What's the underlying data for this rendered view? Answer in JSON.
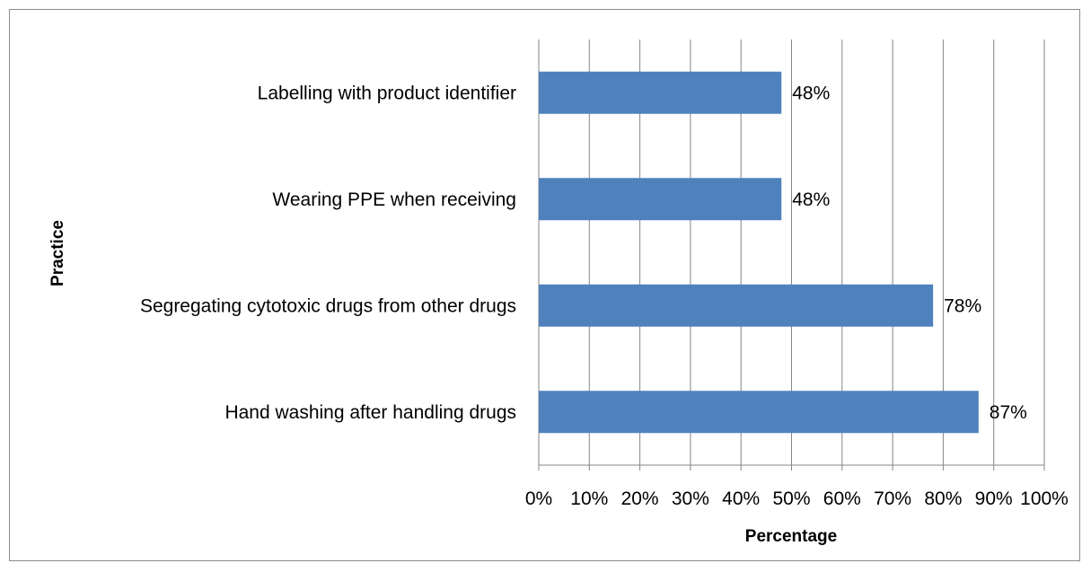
{
  "chart_data": {
    "type": "bar",
    "orientation": "horizontal",
    "categories": [
      "Labelling with product identifier",
      "Wearing PPE when receiving",
      "Segregating cytotoxic drugs from other drugs",
      "Hand washing after handling drugs"
    ],
    "values": [
      48,
      48,
      78,
      87
    ],
    "data_labels": [
      "48%",
      "48%",
      "78%",
      "87%"
    ],
    "xlabel": "Percentage",
    "ylabel": "Practice",
    "xlim": [
      0,
      100
    ],
    "x_ticks": [
      "0%",
      "10%",
      "20%",
      "30%",
      "40%",
      "50%",
      "60%",
      "70%",
      "80%",
      "90%",
      "100%"
    ],
    "grid": "vertical",
    "legend": "none",
    "bar_color": "#4f81bd"
  }
}
